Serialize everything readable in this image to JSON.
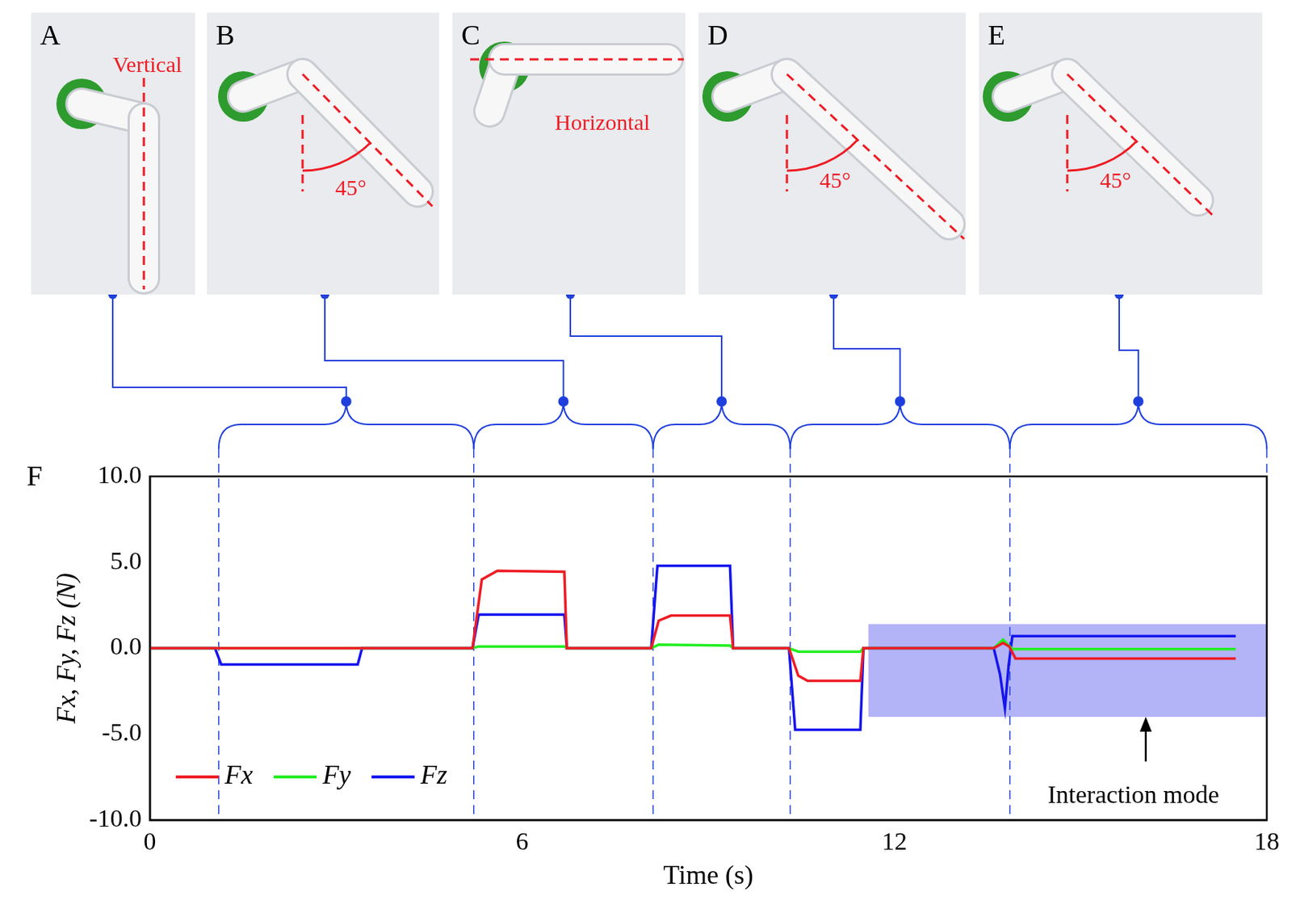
{
  "panels": [
    {
      "label": "A",
      "text": "Vertical"
    },
    {
      "label": "B",
      "text": "45°"
    },
    {
      "label": "C",
      "text": "Horizontal"
    },
    {
      "label": "D",
      "text": "45°"
    },
    {
      "label": "E",
      "text": "45°"
    }
  ],
  "chart_data": {
    "type": "line",
    "label": "F",
    "x_label": "Time (s)",
    "y_label": "Fx, Fy, Fz (N)",
    "xlim": [
      0,
      18
    ],
    "xticks": [
      0,
      6,
      12,
      18
    ],
    "ylim": [
      -10,
      10
    ],
    "yticks": [
      {
        "value": -10,
        "label": "-10.0"
      },
      {
        "value": -5,
        "label": "-5.0"
      },
      {
        "value": 0,
        "label": "0.0"
      },
      {
        "value": 5,
        "label": "5.0"
      },
      {
        "value": 10,
        "label": "10.0"
      }
    ],
    "grid": false,
    "legend": "lower left",
    "phase_boundaries": [
      1.11,
      5.22,
      8.11,
      10.32,
      13.86,
      18
    ],
    "region": {
      "x": [
        11.58,
        18
      ],
      "y": [
        -4.0,
        1.4
      ]
    },
    "annotation": {
      "text": "Interaction mode",
      "x": 15.85,
      "y": -8.6,
      "arrow_from": [
        16.05,
        -6.6
      ],
      "arrow_to": [
        16.05,
        -4.0
      ]
    },
    "series": [
      {
        "name": "Fx",
        "color": "#ee1c25",
        "x": [
          0,
          5.2,
          5.35,
          5.6,
          6.68,
          6.72,
          8.08,
          8.2,
          8.4,
          9.35,
          9.4,
          10.3,
          10.45,
          10.6,
          11.45,
          11.5,
          13.6,
          13.75,
          13.85,
          13.95,
          17.5
        ],
        "values": [
          0,
          0,
          4.0,
          4.5,
          4.45,
          0,
          0,
          1.6,
          1.9,
          1.9,
          0,
          0,
          -1.6,
          -1.9,
          -1.9,
          0,
          0,
          0.3,
          0.1,
          -0.6,
          -0.6
        ]
      },
      {
        "name": "Fy",
        "color": "#22ee22",
        "x": [
          0,
          5.2,
          5.3,
          6.68,
          6.72,
          8.08,
          8.2,
          9.35,
          9.4,
          10.3,
          10.45,
          11.45,
          11.5,
          13.6,
          13.75,
          13.9,
          17.5
        ],
        "values": [
          0,
          0,
          0.1,
          0.1,
          0,
          0,
          0.2,
          0.15,
          0,
          0,
          -0.2,
          -0.2,
          0,
          0,
          0.5,
          -0.05,
          -0.05
        ]
      },
      {
        "name": "Fz",
        "color": "#1515ee",
        "x": [
          0,
          1.05,
          1.15,
          3.35,
          3.42,
          5.2,
          5.3,
          6.68,
          6.72,
          8.08,
          8.18,
          9.35,
          9.4,
          10.3,
          10.4,
          11.45,
          11.5,
          13.6,
          13.7,
          13.78,
          13.84,
          13.9,
          17.5
        ],
        "values": [
          0,
          0,
          -0.95,
          -0.95,
          0,
          0,
          1.95,
          1.95,
          0,
          0,
          4.8,
          4.8,
          0,
          0,
          -4.75,
          -4.75,
          0,
          0,
          -1.5,
          -3.5,
          -1.0,
          0.7,
          0.7
        ]
      }
    ]
  }
}
